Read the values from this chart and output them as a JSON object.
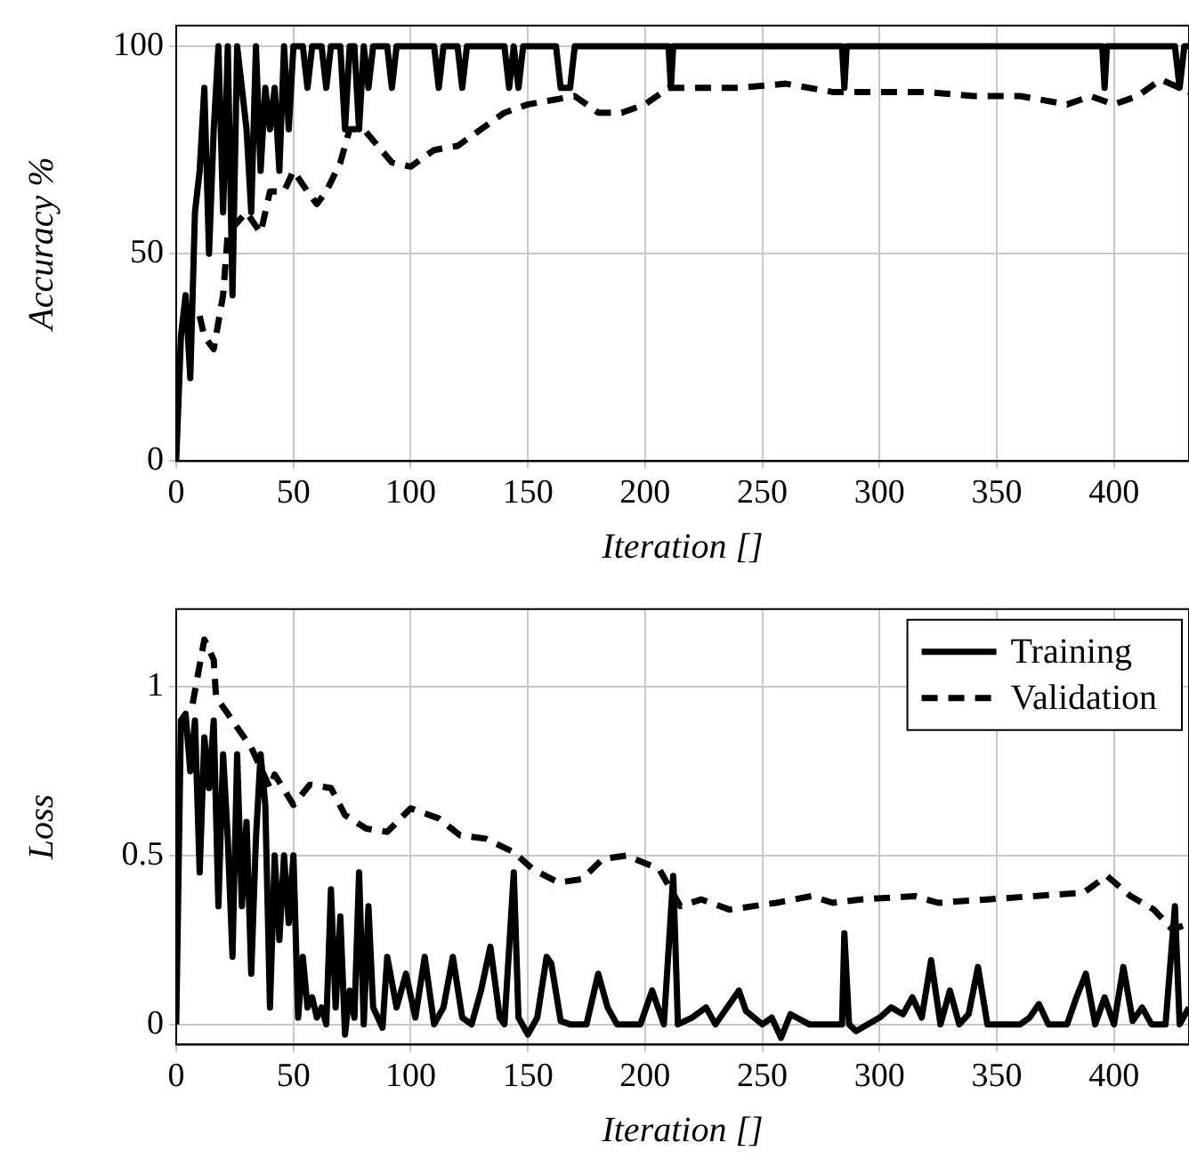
{
  "chart_data": [
    {
      "type": "line",
      "xlabel": "Iteration []",
      "ylabel": "Accuracy %",
      "xlim": [
        0,
        432
      ],
      "xticks": [
        0,
        50,
        100,
        150,
        200,
        250,
        300,
        350,
        400
      ],
      "ylim": [
        0,
        105
      ],
      "yticks": [
        0,
        50,
        100
      ],
      "grid": true,
      "legend": false,
      "marker": "none",
      "series": [
        {
          "color": "#000000",
          "line_style": "solid",
          "x": [
            0,
            2,
            4,
            6,
            8,
            10,
            12,
            14,
            16,
            18,
            20,
            22,
            24,
            26,
            28,
            30,
            32,
            34,
            36,
            38,
            40,
            42,
            44,
            46,
            48,
            50,
            54,
            56,
            58,
            62,
            64,
            66,
            70,
            72,
            74,
            76,
            78,
            80,
            82,
            84,
            90,
            92,
            94,
            110,
            112,
            114,
            120,
            122,
            124,
            140,
            142,
            144,
            146,
            148,
            162,
            164,
            168,
            170,
            210,
            211,
            212,
            284,
            285,
            286,
            395,
            396,
            397,
            426,
            428,
            430,
            432
          ],
          "values": [
            0,
            30,
            40,
            20,
            60,
            70,
            90,
            50,
            80,
            100,
            60,
            100,
            40,
            100,
            90,
            80,
            60,
            100,
            70,
            90,
            80,
            90,
            70,
            100,
            80,
            100,
            100,
            90,
            100,
            100,
            90,
            100,
            100,
            80,
            100,
            100,
            80,
            100,
            90,
            100,
            100,
            90,
            100,
            100,
            90,
            100,
            100,
            90,
            100,
            100,
            90,
            100,
            90,
            100,
            100,
            90,
            90,
            100,
            100,
            90,
            100,
            100,
            90,
            100,
            100,
            90,
            100,
            100,
            90,
            100,
            100
          ]
        },
        {
          "color": "#000000",
          "line_style": "dashed",
          "x": [
            10,
            12,
            16,
            20,
            22,
            30,
            36,
            40,
            46,
            50,
            56,
            60,
            64,
            70,
            74,
            80,
            86,
            92,
            100,
            110,
            120,
            130,
            140,
            150,
            160,
            170,
            180,
            190,
            200,
            210,
            220,
            240,
            260,
            280,
            300,
            320,
            340,
            360,
            380,
            390,
            400,
            410,
            420,
            432
          ],
          "values": [
            35,
            30,
            27,
            40,
            55,
            60,
            55,
            65,
            65,
            70,
            65,
            62,
            65,
            72,
            80,
            80,
            76,
            72,
            71,
            75,
            76,
            80,
            84,
            86,
            87,
            88,
            84,
            84,
            86,
            90,
            90,
            90,
            91,
            89,
            89,
            89,
            88,
            88,
            86,
            88,
            86,
            88,
            92,
            89
          ]
        }
      ]
    },
    {
      "type": "line",
      "xlabel": "Iteration []",
      "ylabel": "Loss",
      "xlim": [
        0,
        432
      ],
      "xticks": [
        0,
        50,
        100,
        150,
        200,
        250,
        300,
        350,
        400
      ],
      "ylim": [
        -0.06,
        1.23
      ],
      "yticks": [
        0,
        0.5,
        1
      ],
      "grid": true,
      "legend": "top right",
      "marker": "none",
      "series": [
        {
          "name": "Training",
          "color": "#000000",
          "line_style": "solid",
          "x": [
            0,
            2,
            4,
            6,
            8,
            10,
            12,
            14,
            16,
            18,
            20,
            22,
            24,
            26,
            28,
            30,
            32,
            34,
            36,
            38,
            40,
            42,
            44,
            46,
            48,
            50,
            52,
            54,
            56,
            58,
            60,
            62,
            64,
            66,
            68,
            70,
            72,
            74,
            76,
            78,
            80,
            82,
            84,
            88,
            90,
            94,
            98,
            102,
            106,
            110,
            114,
            118,
            122,
            126,
            130,
            134,
            138,
            140,
            144,
            146,
            150,
            154,
            158,
            160,
            164,
            168,
            175,
            180,
            184,
            188,
            198,
            203,
            208,
            212,
            214,
            220,
            226,
            230,
            240,
            243,
            250,
            254,
            258,
            262,
            270,
            284,
            285,
            287,
            290,
            300,
            305,
            310,
            314,
            318,
            322,
            326,
            330,
            334,
            338,
            342,
            346,
            360,
            364,
            368,
            372,
            380,
            384,
            388,
            392,
            396,
            400,
            404,
            408,
            412,
            416,
            422,
            426,
            428,
            432
          ],
          "values": [
            0,
            0.9,
            0.92,
            0.75,
            0.9,
            0.45,
            0.85,
            0.7,
            0.9,
            0.35,
            0.8,
            0.55,
            0.2,
            0.8,
            0.35,
            0.6,
            0.15,
            0.55,
            0.8,
            0.65,
            0.05,
            0.5,
            0.25,
            0.5,
            0.3,
            0.5,
            0.02,
            0.2,
            0.05,
            0.08,
            0.02,
            0.05,
            0,
            0.4,
            0.05,
            0.32,
            -0.03,
            0.1,
            0.02,
            0.45,
            0,
            0.35,
            0.05,
            -0.01,
            0.2,
            0.05,
            0.15,
            0.02,
            0.2,
            0,
            0.05,
            0.2,
            0.02,
            0,
            0.1,
            0.23,
            0.02,
            0,
            0.45,
            0.02,
            -0.03,
            0.02,
            0.2,
            0.18,
            0.01,
            0,
            0,
            0.15,
            0.05,
            0,
            0,
            0.1,
            0,
            0.44,
            0,
            0.02,
            0.05,
            0,
            0.1,
            0.04,
            0,
            0.02,
            -0.04,
            0.03,
            0,
            0,
            0.27,
            0,
            -0.02,
            0.02,
            0.05,
            0.03,
            0.08,
            0.02,
            0.19,
            0,
            0.1,
            0,
            0.03,
            0.17,
            0,
            0,
            0.02,
            0.06,
            0,
            0,
            0.08,
            0.15,
            0,
            0.08,
            0,
            0.17,
            0.01,
            0.05,
            0,
            0,
            0.35,
            0,
            0.05
          ]
        },
        {
          "name": "Validation",
          "color": "#000000",
          "line_style": "dashed",
          "x": [
            7,
            12,
            16,
            17,
            32,
            40,
            42,
            50,
            57,
            66,
            72,
            81,
            90,
            100,
            112,
            121,
            132,
            144,
            152,
            163,
            173,
            182,
            192,
            206,
            215,
            224,
            236,
            256,
            271,
            280,
            292,
            315,
            325,
            346,
            366,
            387,
            397,
            407,
            417,
            425,
            432
          ],
          "values": [
            0.95,
            1.14,
            1.08,
            0.97,
            0.82,
            0.7,
            0.74,
            0.65,
            0.71,
            0.7,
            0.62,
            0.58,
            0.57,
            0.64,
            0.61,
            0.56,
            0.55,
            0.51,
            0.46,
            0.42,
            0.43,
            0.49,
            0.5,
            0.46,
            0.35,
            0.37,
            0.34,
            0.36,
            0.38,
            0.36,
            0.37,
            0.38,
            0.36,
            0.37,
            0.38,
            0.39,
            0.44,
            0.38,
            0.34,
            0.28,
            0.3
          ]
        }
      ]
    }
  ]
}
